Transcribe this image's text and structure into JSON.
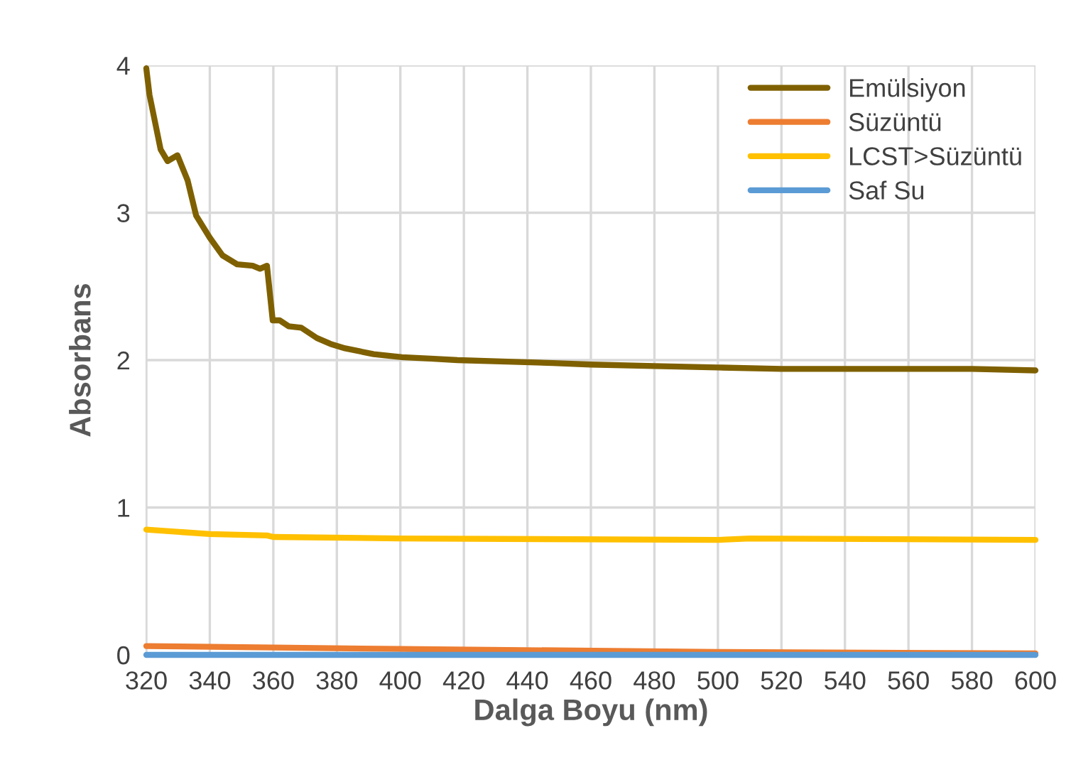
{
  "chart_data": {
    "type": "line",
    "xlabel": "Dalga Boyu (nm)",
    "ylabel": "Absorbans",
    "xlim": [
      320,
      600
    ],
    "xticks": [
      320,
      340,
      360,
      380,
      400,
      420,
      440,
      460,
      480,
      500,
      520,
      540,
      560,
      580,
      600
    ],
    "ylim": [
      0,
      4
    ],
    "yticks": [
      0,
      1,
      2,
      3,
      4
    ],
    "grid": true,
    "legend": "top right",
    "marker": "none",
    "line_style": "solid",
    "series": [
      {
        "name": "Emülsiyon",
        "color": "#7f6000",
        "x": [
          320,
          321,
          324.5,
          326.7,
          329.8,
          333,
          335.7,
          340,
          344,
          348.6,
          353.5,
          355.8,
          358,
          359.8,
          362,
          364.8,
          368.8,
          373.7,
          378,
          382.6,
          391.6,
          400.5,
          409.5,
          418,
          433.6,
          448,
          460,
          480,
          500,
          520,
          540,
          560,
          580,
          600
        ],
        "values": [
          3.98,
          3.8,
          3.43,
          3.35,
          3.39,
          3.22,
          2.98,
          2.83,
          2.71,
          2.65,
          2.64,
          2.62,
          2.64,
          2.27,
          2.27,
          2.23,
          2.22,
          2.15,
          2.11,
          2.08,
          2.04,
          2.02,
          2.01,
          2.0,
          1.99,
          1.98,
          1.97,
          1.96,
          1.95,
          1.94,
          1.94,
          1.94,
          1.94,
          1.93
        ]
      },
      {
        "name": "Süzüntü",
        "color": "#ed7d31",
        "x": [
          320,
          360,
          400,
          500,
          600
        ],
        "values": [
          0.06,
          0.05,
          0.04,
          0.02,
          0.01
        ]
      },
      {
        "name": "LCST>Süzüntü",
        "color": "#ffc000",
        "x": [
          320,
          340,
          358,
          360,
          400,
          500,
          510,
          600
        ],
        "values": [
          0.85,
          0.82,
          0.81,
          0.8,
          0.79,
          0.78,
          0.79,
          0.78
        ]
      },
      {
        "name": "Saf Su",
        "color": "#5b9bd5",
        "x": [
          320,
          600
        ],
        "values": [
          0,
          0
        ]
      }
    ]
  }
}
